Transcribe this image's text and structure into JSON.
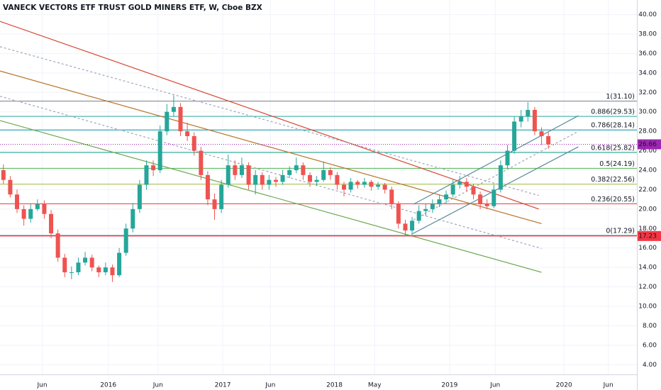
{
  "chart_data": {
    "type": "candlestick",
    "title": "VANECK VECTORS ETF TRUST GOLD MINERS ETF, W, Cboe BZX",
    "up_color": "#26a69a",
    "down_color": "#ef5350",
    "grid": true,
    "ylim": [
      3,
      41.5
    ],
    "yticks": [
      {
        "value": 4,
        "label": "4.00"
      },
      {
        "value": 6,
        "label": "6.00"
      },
      {
        "value": 8,
        "label": "8.00"
      },
      {
        "value": 10,
        "label": "10.00"
      },
      {
        "value": 12,
        "label": "12.00"
      },
      {
        "value": 14,
        "label": "14.00"
      },
      {
        "value": 16,
        "label": "16.00"
      },
      {
        "value": 18,
        "label": "18.00"
      },
      {
        "value": 20,
        "label": "20.00"
      },
      {
        "value": 22,
        "label": "22.00"
      },
      {
        "value": 24,
        "label": "24.00"
      },
      {
        "value": 26,
        "label": "26.00"
      },
      {
        "value": 28,
        "label": "28.00"
      },
      {
        "value": 30,
        "label": "30.00"
      },
      {
        "value": 32,
        "label": "32.00"
      },
      {
        "value": 34,
        "label": "34.00"
      },
      {
        "value": 36,
        "label": "36.00"
      },
      {
        "value": 38,
        "label": "38.00"
      },
      {
        "value": 40,
        "label": "40.00"
      }
    ],
    "xlim": [
      -0.5,
      93
    ],
    "xticks": [
      {
        "value": 5.7,
        "label": "Jun"
      },
      {
        "value": 15.4,
        "label": "2016"
      },
      {
        "value": 22.7,
        "label": "Jun"
      },
      {
        "value": 32.2,
        "label": "2017"
      },
      {
        "value": 39.2,
        "label": "Jun"
      },
      {
        "value": 48.6,
        "label": "2018"
      },
      {
        "value": 54.5,
        "label": "May"
      },
      {
        "value": 65.5,
        "label": "2019"
      },
      {
        "value": 72.2,
        "label": "Jun"
      },
      {
        "value": 82.3,
        "label": "2020"
      },
      {
        "value": 88.8,
        "label": "Jun"
      }
    ],
    "candles": [
      [
        24,
        24.6,
        22.6,
        23
      ],
      [
        23,
        23.4,
        21.2,
        21.5
      ],
      [
        21.5,
        22,
        19.6,
        20
      ],
      [
        20,
        20.4,
        18.3,
        19
      ],
      [
        19,
        20.5,
        18.6,
        20
      ],
      [
        20,
        21,
        19.8,
        20.5
      ],
      [
        20.5,
        20.9,
        19,
        19.5
      ],
      [
        19.5,
        19.9,
        17,
        17.5
      ],
      [
        17.5,
        17.9,
        14.6,
        15
      ],
      [
        15,
        15.4,
        13,
        13.5
      ],
      [
        13.5,
        14.1,
        12.8,
        13.5
      ],
      [
        13.5,
        15,
        13.2,
        14.5
      ],
      [
        14.5,
        15.6,
        14.2,
        15
      ],
      [
        15,
        15.3,
        13.6,
        14
      ],
      [
        14,
        14.2,
        13,
        13.5
      ],
      [
        13.5,
        14.5,
        13.2,
        14
      ],
      [
        14,
        14.3,
        12.5,
        13.2
      ],
      [
        13.2,
        16,
        13,
        15.5
      ],
      [
        15.5,
        18.5,
        15.2,
        18
      ],
      [
        18,
        20.6,
        17.6,
        20
      ],
      [
        20,
        23,
        19.6,
        22.5
      ],
      [
        22.5,
        25,
        22,
        24.5
      ],
      [
        24.5,
        25,
        23.4,
        24
      ],
      [
        24,
        28.6,
        23.7,
        28
      ],
      [
        28,
        30.8,
        27.6,
        30
      ],
      [
        30,
        31.7,
        29.5,
        30.5
      ],
      [
        30.5,
        30.9,
        27.5,
        28
      ],
      [
        28,
        28.9,
        27,
        27.5
      ],
      [
        27.5,
        27.9,
        25.5,
        26
      ],
      [
        26,
        26.4,
        23,
        23.5
      ],
      [
        23.5,
        23.9,
        20.4,
        21
      ],
      [
        21,
        21.6,
        18.9,
        20
      ],
      [
        20,
        23,
        19.6,
        22.5
      ],
      [
        22.5,
        25.6,
        22.2,
        24.5
      ],
      [
        24.5,
        25,
        23,
        23.5
      ],
      [
        23.5,
        25.3,
        23.2,
        24.5
      ],
      [
        24.5,
        24.8,
        22,
        22.5
      ],
      [
        22.5,
        24,
        21.5,
        23.5
      ],
      [
        23.5,
        23.8,
        22,
        22.5
      ],
      [
        22.5,
        23.5,
        22,
        23
      ],
      [
        23,
        23.3,
        22.3,
        22.8
      ],
      [
        22.8,
        24,
        22.5,
        23.5
      ],
      [
        23.5,
        24.4,
        23.2,
        24
      ],
      [
        24,
        25.3,
        23.7,
        24.5
      ],
      [
        24.5,
        24.8,
        23,
        23.5
      ],
      [
        23.5,
        23.8,
        22.3,
        22.8
      ],
      [
        22.8,
        23.4,
        22.4,
        23
      ],
      [
        23,
        24.9,
        22.8,
        24
      ],
      [
        24,
        24.3,
        23,
        23.5
      ],
      [
        23.5,
        23.8,
        22,
        22.5
      ],
      [
        22.5,
        22.8,
        21.3,
        22
      ],
      [
        22,
        23.2,
        21.7,
        22.8
      ],
      [
        22.8,
        23,
        22.1,
        22.5
      ],
      [
        22.5,
        23.2,
        22.2,
        22.8
      ],
      [
        22.8,
        23,
        21.9,
        22.3
      ],
      [
        22.3,
        22.8,
        22,
        22.5
      ],
      [
        22.5,
        22.7,
        21.6,
        22
      ],
      [
        22,
        22.3,
        20,
        20.5
      ],
      [
        20.5,
        20.8,
        18,
        18.5
      ],
      [
        18.5,
        18.9,
        17.2,
        17.8
      ],
      [
        17.8,
        19.2,
        17.5,
        18.8
      ],
      [
        18.8,
        20.4,
        18.5,
        19.8
      ],
      [
        19.8,
        20.5,
        19.3,
        20
      ],
      [
        20,
        21,
        19.6,
        20.5
      ],
      [
        20.5,
        21.5,
        20.2,
        21
      ],
      [
        21,
        21.9,
        20.6,
        21.5
      ],
      [
        21.5,
        23,
        21.2,
        22.5
      ],
      [
        22.5,
        23.4,
        22.1,
        22.8
      ],
      [
        22.8,
        23.2,
        21.8,
        22.3
      ],
      [
        22.3,
        22.6,
        21,
        21.5
      ],
      [
        21.5,
        21.8,
        20,
        20.5
      ],
      [
        20.5,
        21,
        20,
        20.3
      ],
      [
        20.3,
        22.5,
        20.1,
        22
      ],
      [
        22,
        25,
        21.7,
        24.5
      ],
      [
        24.5,
        26.6,
        24.2,
        26
      ],
      [
        26,
        29.5,
        25.7,
        29
      ],
      [
        29,
        30.2,
        28.4,
        29.5
      ],
      [
        29.5,
        31,
        29,
        30.2
      ],
      [
        30.2,
        30.5,
        27.6,
        28
      ],
      [
        28,
        28.4,
        26.6,
        27.5
      ],
      [
        27.5,
        27.9,
        26.2,
        26.66
      ]
    ],
    "last_price_color": "#9c27b0",
    "alert_line": {
      "value": 17.23,
      "color": "#f23645"
    },
    "fib_levels": [
      {
        "label": "1(31.10)",
        "value": 31.1,
        "color": "#787b86"
      },
      {
        "label": "0.886(29.53)",
        "value": 29.53,
        "color": "#26a69a"
      },
      {
        "label": "0.786(28.14)",
        "value": 28.14,
        "color": "#0097a7"
      },
      {
        "label": "0.618(25.82)",
        "value": 25.82,
        "color": "#089981"
      },
      {
        "label": "0.5(24.19)",
        "value": 24.19,
        "color": "#4caf50"
      },
      {
        "label": "0.382(22.56)",
        "value": 22.56,
        "color": "#9cb83a"
      },
      {
        "label": "0.236(20.55)",
        "value": 20.55,
        "color": "#e53935"
      },
      {
        "label": "0(17.29)",
        "value": 17.29,
        "color": "#787b86"
      }
    ],
    "trend_lines": [
      {
        "color": "#d9432f",
        "dashed": false,
        "points": [
          [
            -0.5,
            39.3
          ],
          [
            78.6,
            20.0
          ]
        ]
      },
      {
        "color": "#a0a4b8",
        "dashed": true,
        "points": [
          [
            -0.5,
            36.7
          ],
          [
            78.6,
            21.4
          ]
        ]
      },
      {
        "color": "#b8742a",
        "dashed": false,
        "points": [
          [
            -0.5,
            34.2
          ],
          [
            79.0,
            18.5
          ]
        ]
      },
      {
        "color": "#a0a4b8",
        "dashed": true,
        "points": [
          [
            -0.5,
            31.6
          ],
          [
            79.0,
            15.95
          ]
        ]
      },
      {
        "color": "#6aa84f",
        "dashed": false,
        "points": [
          [
            -0.5,
            29.1
          ],
          [
            79.0,
            13.5
          ]
        ]
      },
      {
        "color": "#5b8a9a",
        "dashed": false,
        "points": [
          [
            59.9,
            17.4
          ],
          [
            84.4,
            26.4
          ]
        ]
      },
      {
        "color": "#5b8a9a",
        "dashed": false,
        "points": [
          [
            60.2,
            20.5
          ],
          [
            84.4,
            29.6
          ]
        ]
      },
      {
        "color": "#a0a4b8",
        "dashed": true,
        "points": [
          [
            60.2,
            18.9
          ],
          [
            84.4,
            28.0
          ]
        ]
      }
    ]
  }
}
